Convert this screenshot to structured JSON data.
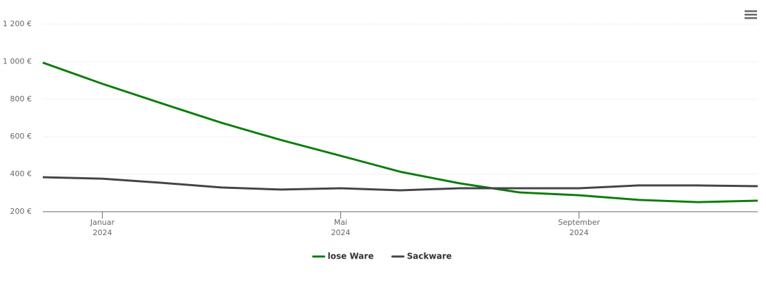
{
  "chart_data": {
    "type": "line",
    "x": [
      "2023-12",
      "2024-01",
      "2024-02",
      "2024-03",
      "2024-04",
      "2024-05",
      "2024-06",
      "2024-07",
      "2024-08",
      "2024-09",
      "2024-10",
      "2024-11",
      "2024-12"
    ],
    "series": [
      {
        "name": "lose Ware",
        "color": "#0b7d0b",
        "values": [
          995,
          882,
          777,
          674,
          582,
          498,
          413,
          351,
          303,
          288,
          263,
          251,
          259
        ]
      },
      {
        "name": "Sackware",
        "color": "#434348",
        "values": [
          384,
          376,
          354,
          329,
          318,
          325,
          314,
          325,
          325,
          325,
          340,
          340,
          336
        ]
      }
    ],
    "xlim": [
      "2023-12",
      "2024-12"
    ],
    "xticks": [
      {
        "value": "2024-01",
        "label": [
          "Januar",
          "2024"
        ]
      },
      {
        "value": "2024-05",
        "label": [
          "Mai",
          "2024"
        ]
      },
      {
        "value": "2024-09",
        "label": [
          "September",
          "2024"
        ]
      }
    ],
    "ylim": [
      200,
      1200
    ],
    "yticks": [
      {
        "value": 200,
        "label": "200 €"
      },
      {
        "value": 400,
        "label": "400 €"
      },
      {
        "value": 600,
        "label": "600 €"
      },
      {
        "value": 800,
        "label": "800 €"
      },
      {
        "value": 1000,
        "label": "1 000 €"
      },
      {
        "value": 1200,
        "label": "1 200 €"
      }
    ],
    "grid": true,
    "legend": "bottom"
  }
}
